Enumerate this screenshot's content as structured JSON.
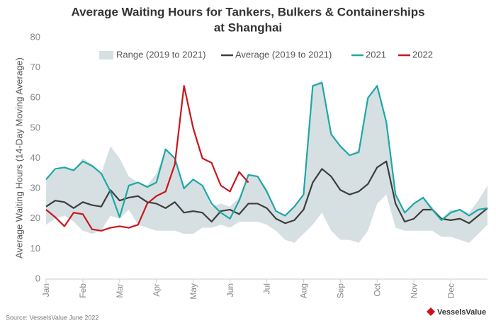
{
  "chart_data": {
    "type": "line",
    "title": [
      "Average Waiting Hours for Tankers, Bulkers & Containerships",
      "at Shanghai"
    ],
    "ylabel": "Average Waiting Hours (14-Day Moving Average)",
    "source": "Source: VesselsValue June 2022",
    "logo": "VesselsValue",
    "categories": [
      "Jan",
      null,
      null,
      null,
      "Feb",
      null,
      null,
      null,
      "Mar",
      null,
      null,
      null,
      "Apr",
      null,
      null,
      null,
      "May",
      null,
      null,
      null,
      "Jun",
      null,
      null,
      null,
      "Jul",
      null,
      null,
      null,
      "Aug",
      null,
      null,
      null,
      "Sep",
      null,
      null,
      null,
      "Oct",
      null,
      null,
      null,
      "Nov",
      null,
      null,
      null,
      "Dec",
      null,
      null,
      null,
      null
    ],
    "range": {
      "name": "Range (2019 to 2021)",
      "color": "#d6e0e3",
      "low": [
        18,
        20,
        21,
        19,
        16,
        15,
        16,
        21,
        20,
        23,
        18,
        17,
        16,
        16,
        16,
        15,
        15,
        17,
        17,
        18,
        17,
        19,
        19,
        19,
        18,
        16,
        13,
        12,
        15,
        18,
        22,
        16,
        13,
        13,
        12,
        16,
        25,
        28,
        17,
        16,
        16,
        16,
        16,
        14,
        14,
        13,
        12,
        15,
        18
      ],
      "high": [
        33,
        36,
        37,
        36,
        40,
        38,
        35,
        44,
        40,
        34,
        32,
        31,
        35,
        43,
        40,
        31,
        33,
        31,
        24,
        25,
        24,
        27,
        35,
        34,
        30,
        22,
        21,
        24,
        28,
        64,
        66,
        48,
        44,
        41,
        43,
        60,
        64,
        53,
        28,
        22,
        25,
        27,
        24,
        20,
        23,
        23,
        22,
        26,
        31
      ]
    },
    "series": [
      {
        "name": "Average (2019 to 2021)",
        "color": "#3d3d3d",
        "values": [
          24,
          26,
          25.5,
          23.5,
          25.5,
          24.5,
          24,
          29.5,
          26,
          27,
          27.5,
          25.5,
          25,
          23.5,
          25.5,
          22,
          22.5,
          22,
          19,
          22.5,
          23,
          21.5,
          25,
          25,
          23.5,
          20,
          18.5,
          19.5,
          23,
          32,
          36.5,
          34,
          29.5,
          28,
          29,
          31.5,
          37,
          39,
          25,
          19,
          20,
          23,
          23,
          20,
          19.5,
          20,
          18.5,
          21,
          23.5
        ]
      },
      {
        "name": "2021",
        "color": "#1fa6a6",
        "values": [
          33,
          36.5,
          37,
          36,
          39,
          37.5,
          35,
          29,
          20.5,
          31,
          32,
          30.5,
          32,
          43,
          40,
          30,
          33,
          31,
          25,
          22,
          20,
          26,
          34.5,
          34,
          29,
          22.5,
          21,
          24,
          28,
          64,
          65,
          48,
          44,
          41,
          42,
          60,
          64,
          52,
          28,
          22,
          25,
          27,
          23,
          19.5,
          22,
          23,
          21,
          23,
          23.5
        ]
      },
      {
        "name": "2022",
        "color": "#c8161d",
        "values": [
          23,
          20.5,
          17.5,
          22,
          21.5,
          16.5,
          16,
          17,
          17.5,
          17,
          18,
          25,
          27.5,
          29,
          38,
          64,
          50,
          40,
          38.5,
          31,
          29,
          35.5,
          32,
          null,
          null,
          null,
          null,
          null,
          null,
          null,
          null,
          null,
          null,
          null,
          null,
          null,
          null,
          null,
          null,
          null,
          null,
          null,
          null,
          null,
          null,
          null,
          null,
          null,
          null
        ]
      }
    ],
    "ylim": [
      0,
      80
    ],
    "yticks": [
      0,
      10,
      20,
      30,
      40,
      50,
      60,
      70,
      80
    ],
    "grid": false
  }
}
